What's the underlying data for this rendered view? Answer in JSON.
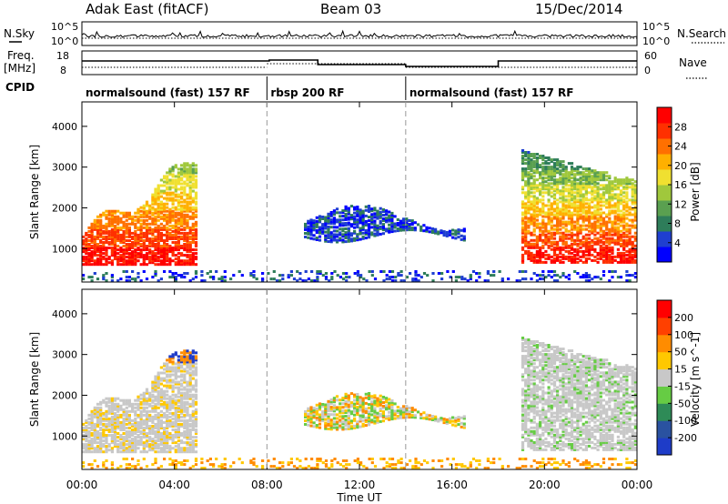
{
  "header": {
    "radar": "Adak East (fitACF)",
    "beam": "Beam 03",
    "date": "15/Dec/2014"
  },
  "status_panels": {
    "nsky_label": "N.Sky",
    "nsearch_label": "N.Search",
    "freq_label_1": "Freq.",
    "freq_label_2": "[MHz]",
    "nave_label": "Nave",
    "cpid_label": "CPID",
    "noise_ticks_left": [
      "10^5",
      "10^0"
    ],
    "noise_ticks_right": [
      "10^5",
      "10^0"
    ],
    "freq_ticks": [
      "18",
      "8"
    ],
    "nave_ticks": [
      "60",
      "0"
    ]
  },
  "cpid_segments": [
    {
      "label": "normalsound (fast) 157 RF",
      "start_h": 0
    },
    {
      "label": "rbsp 200 RF",
      "start_h": 8
    },
    {
      "label": "normalsound (fast) 157 RF",
      "start_h": 14
    }
  ],
  "chart_data": [
    {
      "type": "heatmap",
      "name": "power",
      "ylabel": "Slant Range [km]",
      "xlabel": "Time UT",
      "x_ticks": [
        "00:00",
        "04:00",
        "08:00",
        "12:00",
        "16:00",
        "20:00",
        "00:00"
      ],
      "xlim_hours": [
        0,
        24
      ],
      "ylim": [
        180,
        4600
      ],
      "y_ticks": [
        1000,
        2000,
        3000,
        4000
      ],
      "colorbar": {
        "label": "Power [dB]",
        "ticks": [
          4,
          8,
          12,
          16,
          20,
          24,
          28
        ],
        "range": [
          0,
          32
        ],
        "colors": [
          "#0000ff",
          "#1f3fd0",
          "#2e7d5a",
          "#5aa050",
          "#a0c83c",
          "#f0e030",
          "#ffb000",
          "#ff7000",
          "#ff3000",
          "#ff0000"
        ]
      }
    },
    {
      "type": "heatmap",
      "name": "velocity",
      "ylabel": "Slant Range [km]",
      "xlabel": "Time UT",
      "x_ticks": [
        "00:00",
        "04:00",
        "08:00",
        "12:00",
        "16:00",
        "20:00",
        "00:00"
      ],
      "xlim_hours": [
        0,
        24
      ],
      "ylim": [
        180,
        4600
      ],
      "y_ticks": [
        1000,
        2000,
        3000,
        4000
      ],
      "colorbar": {
        "label": "Velocity [m s^-1]",
        "ticks": [
          "200",
          "100",
          "50",
          "15",
          "-15",
          "-50",
          "-100",
          "-200"
        ],
        "colors": [
          "#1e3cc8",
          "#2a52a0",
          "#2e8b57",
          "#66cc44",
          "#c8c8c8",
          "#ffc800",
          "#ff8c00",
          "#ff4000",
          "#ff0000"
        ]
      }
    }
  ]
}
